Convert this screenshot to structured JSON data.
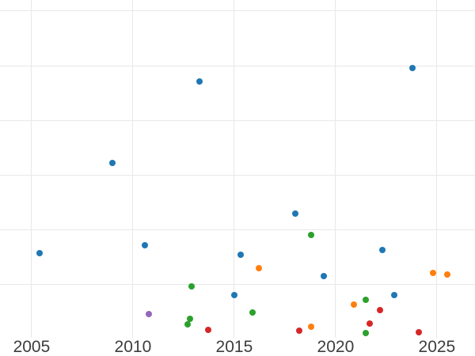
{
  "figure": {
    "background_color": "#ffffff",
    "title": "",
    "legend_visible": false
  },
  "chart_data": {
    "type": "scatter",
    "title": "",
    "xlabel": "",
    "ylabel": "",
    "grid": true,
    "gridline_color": "#e8e8e8",
    "tick_label_color": "#3d3d3d",
    "x_ticks": [
      2005,
      2010,
      2015,
      2020,
      2025
    ],
    "x_tick_labels": [
      "2005",
      "2010",
      "2015",
      "2020",
      "2025"
    ],
    "y_gridlines": [
      10,
      20,
      30,
      40,
      50,
      60
    ],
    "y_tick_labels": [],
    "x_range": [
      2003.44,
      2026.88
    ],
    "y_range": [
      0.3,
      62.0
    ],
    "legend_position": "none",
    "series": [
      {
        "name": "series-blue",
        "color": "#1f77b4",
        "points": [
          [
            2005.4,
            15.7
          ],
          [
            2009.0,
            32.2
          ],
          [
            2010.6,
            17.2
          ],
          [
            2013.3,
            47.1
          ],
          [
            2015.0,
            8.1
          ],
          [
            2015.3,
            15.4
          ],
          [
            2018.0,
            23.0
          ],
          [
            2019.4,
            11.6
          ],
          [
            2022.3,
            16.4
          ],
          [
            2022.9,
            8.1
          ],
          [
            2023.8,
            49.6
          ]
        ]
      },
      {
        "name": "series-orange",
        "color": "#ff7f0e",
        "points": [
          [
            2016.2,
            13.0
          ],
          [
            2018.8,
            2.3
          ],
          [
            2020.9,
            6.4
          ],
          [
            2024.8,
            12.2
          ],
          [
            2025.5,
            11.9
          ]
        ]
      },
      {
        "name": "series-green",
        "color": "#2ca02c",
        "points": [
          [
            2012.9,
            9.7
          ],
          [
            2012.8,
            3.8
          ],
          [
            2012.7,
            2.8
          ],
          [
            2015.9,
            4.9
          ],
          [
            2018.8,
            19.1
          ],
          [
            2021.5,
            7.2
          ],
          [
            2021.5,
            1.2
          ]
        ]
      },
      {
        "name": "series-red",
        "color": "#d62728",
        "points": [
          [
            2013.7,
            1.7
          ],
          [
            2018.2,
            1.6
          ],
          [
            2021.7,
            2.9
          ],
          [
            2022.2,
            5.4
          ],
          [
            2024.1,
            1.3
          ]
        ]
      },
      {
        "name": "series-purple",
        "color": "#9467bd",
        "points": [
          [
            2010.8,
            4.6
          ]
        ]
      }
    ]
  }
}
